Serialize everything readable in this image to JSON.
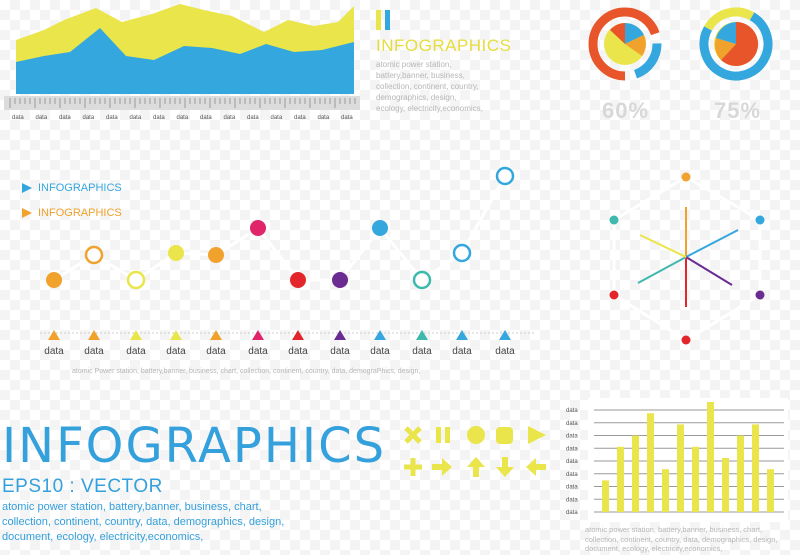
{
  "area_panel": {
    "tick_label": "data",
    "colors": {
      "yellow": "#e9e54a",
      "blue": "#35a7df"
    }
  },
  "header_block": {
    "title": "INFOGRAPHICS",
    "lines": [
      "atomic power station,",
      "battery,banner, business,",
      "collection, continent, country,",
      "demographics, design,",
      "ecology, electricity,economics,"
    ]
  },
  "donuts": {
    "left_pct": "60%",
    "right_pct": "75%",
    "colors": {
      "orange": "#e8552a",
      "yellow": "#e9e54a",
      "blue": "#35a7df"
    }
  },
  "legend": [
    {
      "label": "INFOGRAPHICS",
      "color": "#35a7df"
    },
    {
      "label": "INFOGRAPHICS",
      "color": "#f0a22d"
    }
  ],
  "line_chart": {
    "x_label": "data",
    "caption": "atomic Power station, battery,banner, business, chart, collection, continent, country, data, demograPhics, design,",
    "marker_colors": [
      "#f0a22d",
      "#f0a22d",
      "#e9e54a",
      "#e9e54a",
      "#f0a22d",
      "#e0256a",
      "#e3262b",
      "#6b2c91",
      "#35a7df",
      "#3fb8ad",
      "#35a7df",
      "#35a7df"
    ]
  },
  "radar": {
    "spoke_colors": [
      "#f0a22d",
      "#35a7df",
      "#6b2c91",
      "#e3262b",
      "#3fb8ad",
      "#e9e54a"
    ]
  },
  "main_title": {
    "title": "INFOGRAPHICS",
    "subtitle": "EPS10 : VECTOR",
    "lines": [
      "atomic power station, battery,banner, business, chart,",
      "collection, continent, country, data, demographics, design,",
      "document, ecology, electricity,economics,"
    ]
  },
  "icons": {
    "color": "#e9e54a",
    "row1": [
      "close-icon",
      "pause-icon",
      "record-icon",
      "stop-icon",
      "play-icon"
    ],
    "row2": [
      "plus-icon",
      "arrow-right-icon",
      "arrow-up-icon",
      "arrow-down-icon",
      "arrow-left-icon"
    ]
  },
  "bar_chart": {
    "row_label": "data",
    "color": "#e9e54a",
    "values": [
      3,
      6,
      7,
      9,
      4,
      8,
      6,
      10,
      5,
      7,
      8,
      4
    ],
    "ylim": [
      0,
      10
    ],
    "caption_lines": [
      "atomic power station, battery,banner, business, chart,",
      "collection, continent, country, data, demographics, design,",
      "document, ecology, electricity,economics,"
    ]
  }
}
